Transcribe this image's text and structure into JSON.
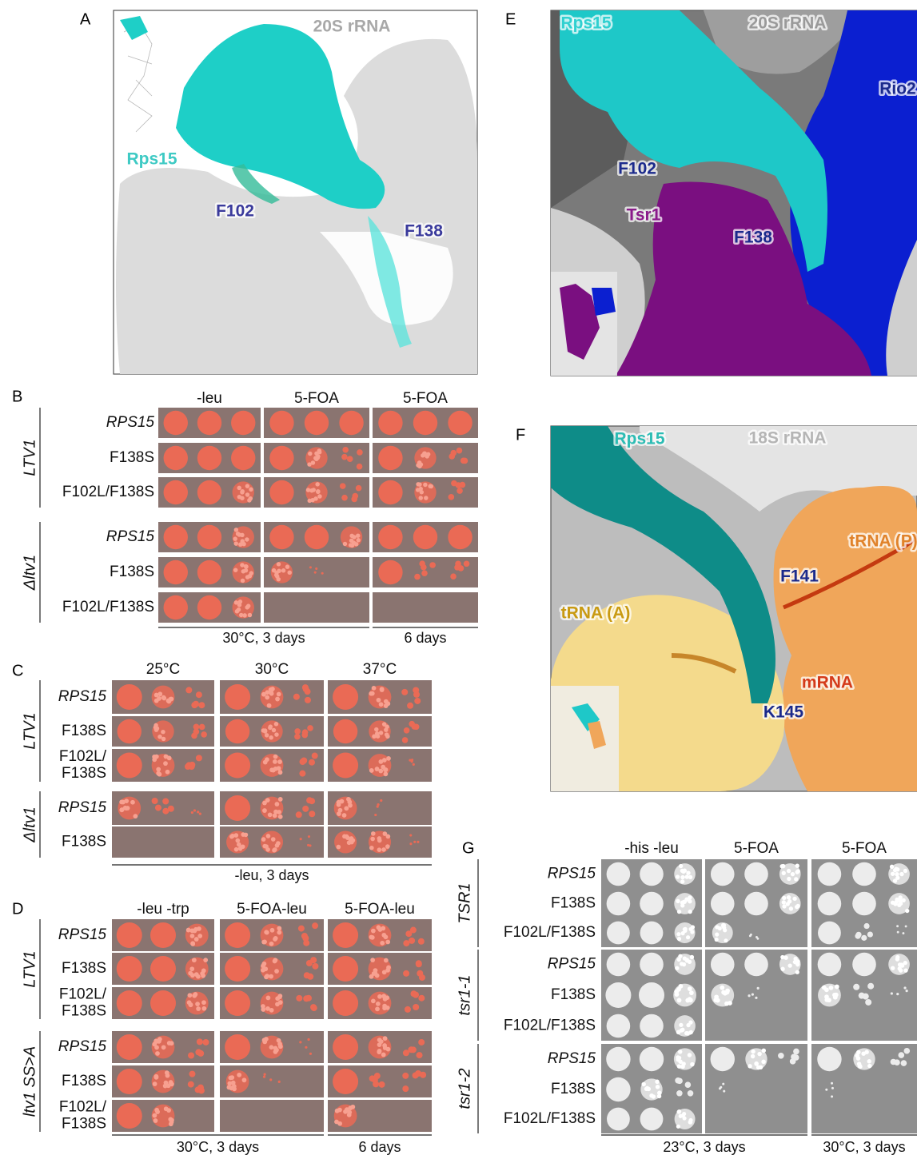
{
  "panels": {
    "A": {
      "label": "A",
      "annotations": {
        "rrna": "20S rRNA",
        "rps15": "Rps15",
        "f102": "F102",
        "f138": "F138"
      }
    },
    "E": {
      "label": "E",
      "annotations": {
        "rps15": "Rps15",
        "rrna": "20S rRNA",
        "rio2": "Rio2",
        "f102": "F102",
        "tsr1": "Tsr1",
        "f138": "F138"
      }
    },
    "F": {
      "label": "F",
      "annotations": {
        "rps15": "Rps15",
        "rrna": "18S rRNA",
        "trna_p": "tRNA (P)",
        "f141": "F141",
        "trna_a": "tRNA (A)",
        "mrna": "mRNA",
        "k145": "K145"
      }
    },
    "B": {
      "label": "B",
      "conditions": [
        "-leu",
        "5-FOA",
        "5-FOA"
      ],
      "groups": [
        {
          "name": "LTV1",
          "strains": [
            "RPS15",
            "F138S",
            "F102L/F138S"
          ]
        },
        {
          "name": "Δltv1",
          "strains": [
            "RPS15",
            "F138S",
            "F102L/F138S"
          ]
        }
      ],
      "footer": [
        "30°C, 3 days",
        "6 days"
      ]
    },
    "C": {
      "label": "C",
      "conditions": [
        "25°C",
        "30°C",
        "37°C"
      ],
      "groups": [
        {
          "name": "LTV1",
          "strains": [
            "RPS15",
            "F138S",
            [
              "F102L/",
              "F138S"
            ]
          ]
        },
        {
          "name": "Δltv1",
          "strains": [
            "RPS15",
            "F138S"
          ]
        }
      ],
      "footer": [
        "-leu, 3 days"
      ]
    },
    "D": {
      "label": "D",
      "conditions": [
        "-leu -trp",
        "5-FOA-leu",
        "5-FOA-leu"
      ],
      "groups": [
        {
          "name": "LTV1",
          "strains": [
            "RPS15",
            "F138S",
            [
              "F102L/",
              "F138S"
            ]
          ]
        },
        {
          "name": "ltv1 SS>A",
          "strains": [
            "RPS15",
            "F138S",
            [
              "F102L/",
              "F138S"
            ]
          ]
        }
      ],
      "footer": [
        "30°C, 3 days",
        "6 days"
      ]
    },
    "G": {
      "label": "G",
      "conditions": [
        "-his -leu",
        "5-FOA",
        "5-FOA"
      ],
      "groups": [
        {
          "name": "TSR1",
          "strains": [
            "RPS15",
            "F138S",
            "F102L/F138S"
          ]
        },
        {
          "name": "tsr1-1",
          "strains": [
            "RPS15",
            "F138S",
            "F102L/F138S"
          ]
        },
        {
          "name": "tsr1-2",
          "strains": [
            "RPS15",
            "F138S",
            "F102L/F138S"
          ]
        }
      ],
      "footer": [
        "23°C, 3 days",
        "30°C, 3 days"
      ]
    }
  }
}
